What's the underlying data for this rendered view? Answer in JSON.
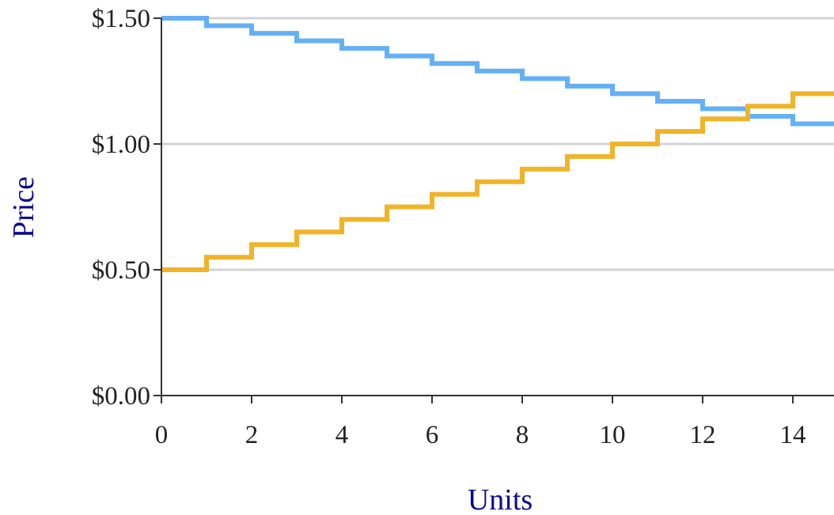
{
  "chart_data": {
    "type": "line",
    "subtype": "step",
    "title": "",
    "xlabel": "Units",
    "ylabel": "Price",
    "xlim": [
      0,
      15
    ],
    "ylim": [
      0,
      1.5
    ],
    "x_ticks": [
      0,
      2,
      4,
      6,
      8,
      10,
      12,
      14
    ],
    "x_tick_labels": [
      "0",
      "2",
      "4",
      "6",
      "8",
      "10",
      "12",
      "14"
    ],
    "y_ticks": [
      0,
      0.5,
      1.0,
      1.5
    ],
    "y_tick_labels": [
      "$0.00",
      "$0.50",
      "$1.00",
      "$1.50"
    ],
    "grid": "horizontal",
    "legend": "none",
    "series": [
      {
        "color": "#64b0f5",
        "x": [
          0,
          1,
          2,
          3,
          4,
          5,
          6,
          7,
          8,
          9,
          10,
          11,
          12,
          13,
          14
        ],
        "values": [
          1.5,
          1.47,
          1.44,
          1.41,
          1.38,
          1.35,
          1.32,
          1.29,
          1.26,
          1.23,
          1.2,
          1.17,
          1.14,
          1.11,
          1.08
        ]
      },
      {
        "color": "#f0b429",
        "x": [
          0,
          1,
          2,
          3,
          4,
          5,
          6,
          7,
          8,
          9,
          10,
          11,
          12,
          13,
          14
        ],
        "values": [
          0.5,
          0.55,
          0.6,
          0.65,
          0.7,
          0.75,
          0.8,
          0.85,
          0.9,
          0.95,
          1.0,
          1.05,
          1.1,
          1.15,
          1.2
        ]
      }
    ]
  }
}
